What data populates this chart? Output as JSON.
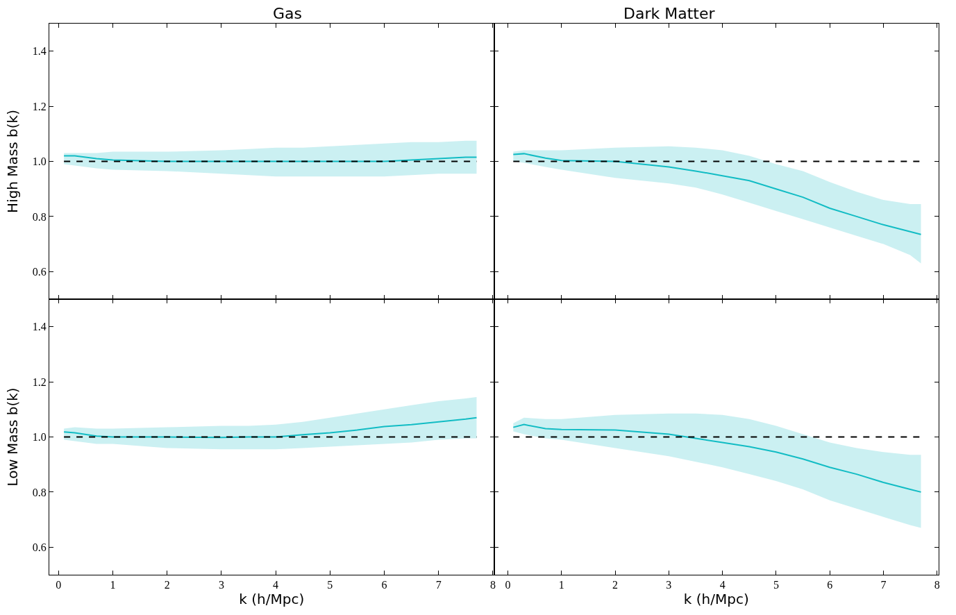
{
  "chart_data": [
    {
      "type": "line",
      "title": "Gas",
      "ylabel": "High Mass b(k)",
      "xlim": [
        -0.17,
        8.02
      ],
      "xticks": [
        0,
        1,
        2,
        3,
        4,
        5,
        6,
        7,
        8
      ],
      "ylim": [
        0.5,
        1.5
      ],
      "yticks": [
        0.6,
        0.8,
        {
          "value": 1.0,
          "label": "1.0"
        },
        1.2,
        1.4
      ],
      "tick_labels": "y",
      "x": [
        0.1,
        0.3,
        0.7,
        1,
        2,
        3,
        3.5,
        4,
        4.5,
        5,
        5.5,
        6,
        6.5,
        7,
        7.5,
        7.7
      ],
      "series": [
        {
          "color": "#12bcc4",
          "values": [
            1.02,
            1.02,
            1.01,
            1.005,
            1.0,
            1.0,
            1.0,
            1.0,
            1.0,
            1.0,
            1.0,
            1.0,
            1.005,
            1.01,
            1.015,
            1.015
          ],
          "upper": [
            1.03,
            1.03,
            1.03,
            1.035,
            1.035,
            1.04,
            1.045,
            1.05,
            1.05,
            1.055,
            1.06,
            1.065,
            1.07,
            1.07,
            1.075,
            1.075
          ],
          "lower": [
            0.99,
            0.985,
            0.975,
            0.97,
            0.965,
            0.955,
            0.95,
            0.945,
            0.945,
            0.945,
            0.945,
            0.945,
            0.95,
            0.955,
            0.955,
            0.955
          ]
        }
      ],
      "ref_lines": [
        {
          "axis": "y",
          "value": 1.0,
          "color": "#000000",
          "line_style": "dashed"
        }
      ]
    },
    {
      "type": "line",
      "title": "Dark Matter",
      "xlim": [
        -0.26,
        8.03
      ],
      "xticks": [
        0,
        1,
        2,
        3,
        4,
        5,
        6,
        7,
        8
      ],
      "ylim": [
        0.5,
        1.5
      ],
      "yticks": [
        0.6,
        0.8,
        1.0,
        1.2,
        1.4
      ],
      "tick_labels": false,
      "x": [
        0.1,
        0.3,
        0.7,
        1,
        2,
        3,
        3.5,
        4,
        4.5,
        5,
        5.5,
        6,
        6.5,
        7,
        7.5,
        7.7
      ],
      "series": [
        {
          "color": "#12bcc4",
          "values": [
            1.025,
            1.028,
            1.012,
            1.003,
            1.0,
            0.98,
            0.965,
            0.948,
            0.93,
            0.9,
            0.87,
            0.83,
            0.8,
            0.77,
            0.745,
            0.735
          ],
          "upper": [
            1.035,
            1.04,
            1.04,
            1.04,
            1.05,
            1.055,
            1.05,
            1.04,
            1.02,
            0.99,
            0.965,
            0.925,
            0.89,
            0.86,
            0.845,
            0.845
          ],
          "lower": [
            1.0,
            0.995,
            0.98,
            0.97,
            0.94,
            0.92,
            0.905,
            0.88,
            0.85,
            0.82,
            0.79,
            0.76,
            0.73,
            0.7,
            0.66,
            0.63
          ]
        }
      ],
      "ref_lines": [
        {
          "axis": "y",
          "value": 1.0,
          "color": "#000000",
          "line_style": "dashed"
        }
      ]
    },
    {
      "type": "line",
      "xlabel": "k (h/Mpc)",
      "ylabel": "Low Mass b(k)",
      "xlim": [
        -0.17,
        8.02
      ],
      "xticks": [
        0,
        1,
        2,
        3,
        4,
        5,
        6,
        7,
        8
      ],
      "ylim": [
        0.5,
        1.5
      ],
      "yticks": [
        0.6,
        0.8,
        {
          "value": 1.0,
          "label": "1.0"
        },
        1.2,
        1.4
      ],
      "x": [
        0.1,
        0.3,
        0.7,
        1,
        2,
        3,
        3.5,
        4,
        4.5,
        5,
        5.5,
        6,
        6.5,
        7,
        7.5,
        7.7
      ],
      "series": [
        {
          "color": "#12bcc4",
          "values": [
            1.018,
            1.015,
            1.003,
            1.0,
            1.0,
            0.998,
            1.0,
            1.0,
            1.008,
            1.015,
            1.025,
            1.038,
            1.045,
            1.055,
            1.065,
            1.07
          ],
          "upper": [
            1.03,
            1.035,
            1.03,
            1.03,
            1.035,
            1.04,
            1.04,
            1.045,
            1.055,
            1.07,
            1.085,
            1.1,
            1.115,
            1.13,
            1.14,
            1.145
          ],
          "lower": [
            0.99,
            0.985,
            0.975,
            0.975,
            0.96,
            0.955,
            0.955,
            0.955,
            0.96,
            0.965,
            0.97,
            0.975,
            0.98,
            0.99,
            0.995,
            0.995
          ]
        }
      ],
      "ref_lines": [
        {
          "axis": "y",
          "value": 1.0,
          "color": "#000000",
          "line_style": "dashed"
        }
      ]
    },
    {
      "type": "line",
      "xlabel": "k (h/Mpc)",
      "xlim": [
        -0.26,
        8.03
      ],
      "xticks": [
        0,
        1,
        2,
        3,
        4,
        5,
        6,
        7,
        8
      ],
      "ylim": [
        0.5,
        1.5
      ],
      "yticks": [
        0.6,
        0.8,
        1.0,
        1.2,
        1.4
      ],
      "tick_labels": "x",
      "x": [
        0.1,
        0.3,
        0.7,
        1,
        2,
        3,
        3.5,
        4,
        4.5,
        5,
        5.5,
        6,
        6.5,
        7,
        7.5,
        7.7
      ],
      "series": [
        {
          "color": "#12bcc4",
          "values": [
            1.035,
            1.045,
            1.03,
            1.027,
            1.025,
            1.01,
            0.995,
            0.98,
            0.965,
            0.945,
            0.92,
            0.89,
            0.865,
            0.835,
            0.81,
            0.8
          ],
          "upper": [
            1.05,
            1.07,
            1.065,
            1.065,
            1.08,
            1.085,
            1.085,
            1.08,
            1.065,
            1.04,
            1.01,
            0.98,
            0.96,
            0.945,
            0.935,
            0.935
          ],
          "lower": [
            1.02,
            1.01,
            0.995,
            0.99,
            0.96,
            0.93,
            0.91,
            0.89,
            0.865,
            0.84,
            0.81,
            0.77,
            0.74,
            0.71,
            0.68,
            0.67
          ]
        }
      ],
      "ref_lines": [
        {
          "axis": "y",
          "value": 1.0,
          "color": "#000000",
          "line_style": "dashed"
        }
      ]
    }
  ]
}
